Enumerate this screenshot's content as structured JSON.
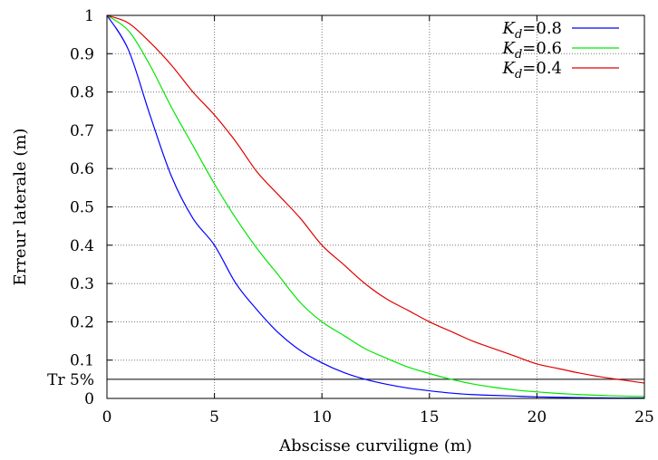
{
  "chart_data": {
    "type": "line",
    "xlabel": "Abscisse curviligne (m)",
    "ylabel": "Erreur laterale (m)",
    "xlim": [
      0,
      25
    ],
    "ylim": [
      0,
      1
    ],
    "xticks": [
      "0",
      "5",
      "10",
      "15",
      "20",
      "25"
    ],
    "yticks": [
      "0",
      "0.1",
      "0.2",
      "0.3",
      "0.4",
      "0.5",
      "0.6",
      "0.7",
      "0.8",
      "0.9",
      "1"
    ],
    "grid": true,
    "legend_position": "top-right",
    "threshold": {
      "label": "Tr 5%",
      "value": 0.05,
      "color": "#000000"
    },
    "series": [
      {
        "name_main": "K",
        "name_sub": "d",
        "name_value": "=0.8",
        "color": "#0000ff",
        "x": [
          0,
          1,
          2,
          3,
          4,
          5,
          6,
          7,
          8,
          9,
          10,
          11,
          12,
          13,
          14,
          15,
          16,
          17,
          18,
          19,
          20,
          21,
          22,
          23,
          24,
          25
        ],
        "y": [
          1.0,
          0.91,
          0.74,
          0.58,
          0.47,
          0.4,
          0.3,
          0.23,
          0.17,
          0.125,
          0.093,
          0.068,
          0.05,
          0.037,
          0.027,
          0.02,
          0.014,
          0.01,
          0.008,
          0.006,
          0.004,
          0.003,
          0.002,
          0.0015,
          0.001,
          0.001
        ]
      },
      {
        "name_main": "K",
        "name_sub": "d",
        "name_value": "=0.6",
        "color": "#00e600",
        "x": [
          0,
          1,
          2,
          3,
          4,
          5,
          6,
          7,
          8,
          9,
          10,
          11,
          12,
          13,
          14,
          15,
          16,
          17,
          18,
          19,
          20,
          21,
          22,
          23,
          24,
          25
        ],
        "y": [
          1.0,
          0.96,
          0.87,
          0.76,
          0.66,
          0.56,
          0.47,
          0.39,
          0.32,
          0.25,
          0.2,
          0.165,
          0.13,
          0.105,
          0.082,
          0.065,
          0.05,
          0.038,
          0.029,
          0.022,
          0.017,
          0.013,
          0.01,
          0.008,
          0.006,
          0.005
        ]
      },
      {
        "name_main": "K",
        "name_sub": "d",
        "name_value": "=0.4",
        "color": "#e00000",
        "x": [
          0,
          1,
          2,
          3,
          4,
          5,
          6,
          7,
          8,
          9,
          10,
          11,
          12,
          13,
          14,
          15,
          16,
          17,
          18,
          19,
          20,
          21,
          22,
          23,
          24,
          25
        ],
        "y": [
          1.0,
          0.98,
          0.93,
          0.87,
          0.8,
          0.74,
          0.67,
          0.59,
          0.53,
          0.47,
          0.4,
          0.35,
          0.3,
          0.26,
          0.23,
          0.2,
          0.175,
          0.15,
          0.13,
          0.11,
          0.09,
          0.078,
          0.066,
          0.056,
          0.048,
          0.04
        ]
      }
    ]
  }
}
